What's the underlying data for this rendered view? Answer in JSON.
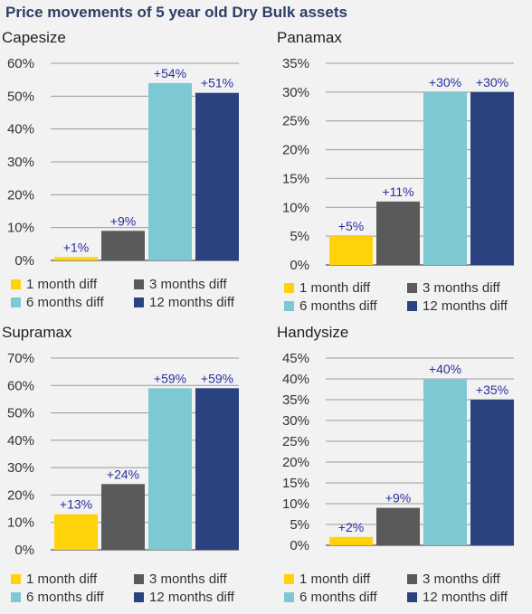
{
  "page": {
    "title": "Price movements of 5 year old Dry Bulk assets"
  },
  "series_colors": [
    "#ffd20a",
    "#5a5a5a",
    "#7ec8d4",
    "#2b4280"
  ],
  "label_color": "#2b2f9e",
  "chart_data": [
    {
      "type": "bar",
      "title": "Capesize",
      "categories": [
        "1 month diff",
        "3 months diff",
        "6 months diff",
        "12 months diff"
      ],
      "values": [
        1,
        9,
        54,
        51
      ],
      "data_labels": [
        "+1%",
        "+9%",
        "+54%",
        "+51%"
      ],
      "yticks": [
        "0%",
        "10%",
        "20%",
        "30%",
        "40%",
        "50%",
        "60%"
      ],
      "ylim": [
        0,
        60
      ],
      "grid": true,
      "legend": [
        "1 month diff",
        "3 months diff",
        "6 months diff",
        "12 months diff"
      ]
    },
    {
      "type": "bar",
      "title": "Panamax",
      "categories": [
        "1 month diff",
        "3 months diff",
        "6 months diff",
        "12 months diff"
      ],
      "values": [
        5,
        11,
        30,
        30
      ],
      "data_labels": [
        "+5%",
        "+11%",
        "+30%",
        "+30%"
      ],
      "yticks": [
        "0%",
        "5%",
        "10%",
        "15%",
        "20%",
        "25%",
        "30%",
        "35%"
      ],
      "ylim": [
        0,
        35
      ],
      "grid": true,
      "legend": [
        "1 month diff",
        "3 months diff",
        "6 months diff",
        "12 months diff"
      ]
    },
    {
      "type": "bar",
      "title": "Supramax",
      "categories": [
        "1 month diff",
        "3 months diff",
        "6 months diff",
        "12 months diff"
      ],
      "values": [
        13,
        24,
        59,
        59
      ],
      "data_labels": [
        "+13%",
        "+24%",
        "+59%",
        "+59%"
      ],
      "yticks": [
        "0%",
        "10%",
        "20%",
        "30%",
        "40%",
        "50%",
        "60%",
        "70%"
      ],
      "ylim": [
        0,
        70
      ],
      "grid": true,
      "legend": [
        "1 month diff",
        "3 months diff",
        "6 months diff",
        "12 months diff"
      ]
    },
    {
      "type": "bar",
      "title": "Handysize",
      "categories": [
        "1 month diff",
        "3 months diff",
        "6 months diff",
        "12 months diff"
      ],
      "values": [
        2,
        9,
        40,
        35
      ],
      "data_labels": [
        "+2%",
        "+9%",
        "+40%",
        "+35%"
      ],
      "yticks": [
        "0%",
        "5%",
        "10%",
        "15%",
        "20%",
        "25%",
        "30%",
        "35%",
        "40%",
        "45%"
      ],
      "ylim": [
        0,
        45
      ],
      "grid": true,
      "legend": [
        "1 month diff",
        "3 months diff",
        "6 months diff",
        "12 months diff"
      ]
    }
  ]
}
